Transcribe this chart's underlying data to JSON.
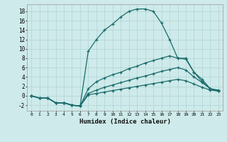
{
  "xlabel": "Humidex (Indice chaleur)",
  "background_color": "#ceeaea",
  "grid_color": "#b0d4d4",
  "line_color": "#1a6b6b",
  "xlim": [
    -0.5,
    23.5
  ],
  "ylim": [
    -3.2,
    19.5
  ],
  "yticks": [
    -2,
    0,
    2,
    4,
    6,
    8,
    10,
    12,
    14,
    16,
    18
  ],
  "xticks": [
    0,
    1,
    2,
    3,
    4,
    5,
    6,
    7,
    8,
    9,
    10,
    11,
    12,
    13,
    14,
    15,
    16,
    17,
    18,
    19,
    20,
    21,
    22,
    23
  ],
  "line1_x": [
    0,
    1,
    2,
    3,
    4,
    5,
    6,
    7,
    8,
    9,
    10,
    11,
    12,
    13,
    14,
    15,
    16,
    17,
    18,
    19,
    20,
    21,
    22,
    23
  ],
  "line1_y": [
    0,
    -0.5,
    -0.5,
    -1.5,
    -1.5,
    -2,
    -2.2,
    9.5,
    12,
    14,
    15.3,
    16.8,
    18,
    18.5,
    18.5,
    18,
    15.5,
    12,
    8,
    8,
    5,
    3,
    1.5,
    1
  ],
  "line2_x": [
    0,
    1,
    2,
    3,
    4,
    5,
    6,
    7,
    8,
    9,
    10,
    11,
    12,
    13,
    14,
    15,
    16,
    17,
    18,
    19,
    20,
    21,
    22,
    23
  ],
  "line2_y": [
    0,
    -0.5,
    -0.5,
    -1.5,
    -1.5,
    -2,
    -2.2,
    1.5,
    3,
    3.8,
    4.5,
    5,
    5.8,
    6.3,
    7,
    7.5,
    8,
    8.5,
    8,
    7.8,
    5,
    3.5,
    1.5,
    1
  ],
  "line3_x": [
    0,
    1,
    2,
    3,
    4,
    5,
    6,
    7,
    8,
    9,
    10,
    11,
    12,
    13,
    14,
    15,
    16,
    17,
    18,
    19,
    20,
    21,
    22,
    23
  ],
  "line3_y": [
    0,
    -0.5,
    -0.5,
    -1.5,
    -1.5,
    -2,
    -2.2,
    0.5,
    1.2,
    1.8,
    2.3,
    2.8,
    3.3,
    3.8,
    4.2,
    4.7,
    5.2,
    5.6,
    6,
    5.5,
    4,
    2.8,
    1.5,
    1.2
  ],
  "line4_x": [
    0,
    1,
    2,
    3,
    4,
    5,
    6,
    7,
    8,
    9,
    10,
    11,
    12,
    13,
    14,
    15,
    16,
    17,
    18,
    19,
    20,
    21,
    22,
    23
  ],
  "line4_y": [
    0,
    -0.5,
    -0.5,
    -1.5,
    -1.5,
    -2,
    -2.2,
    0.2,
    0.5,
    0.8,
    1.1,
    1.4,
    1.7,
    2.0,
    2.3,
    2.6,
    2.9,
    3.2,
    3.5,
    3.2,
    2.5,
    1.8,
    1.2,
    1.0
  ]
}
